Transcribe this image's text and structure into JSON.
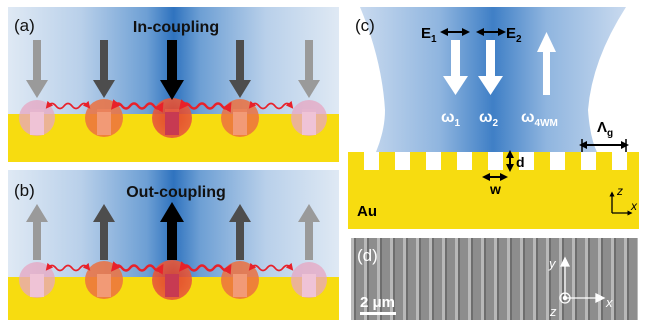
{
  "panels": {
    "a": {
      "label": "(a)",
      "title": "In-coupling"
    },
    "b": {
      "label": "(b)",
      "title": "Out-coupling"
    },
    "c": {
      "label": "(c)",
      "field1": "E",
      "field1_sub": "1",
      "field2": "E",
      "field2_sub": "2",
      "omega1": "ω",
      "omega1_sub": "1",
      "omega2": "ω",
      "omega2_sub": "2",
      "omega4": "ω",
      "omega4_sub": "4WM",
      "period": "Λ",
      "period_sub": "g",
      "depth": "d",
      "width": "w",
      "metal": "Au",
      "axis_z": "z",
      "axis_x": "x"
    },
    "d": {
      "label": "(d)",
      "scalebar": "2 μm",
      "axis_y": "y",
      "axis_x": "x",
      "axis_z": "z"
    }
  },
  "colors": {
    "gold": "#f7dc10",
    "beam_blue": "#3a7cc4",
    "photon_red": "#e8212a",
    "sem_gray": "#8a8a8a"
  }
}
